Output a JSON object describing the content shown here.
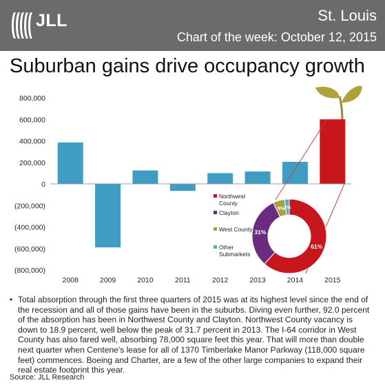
{
  "header": {
    "brand": "JLL",
    "city": "St. Louis",
    "subtitle": "Chart of the week: October 12, 2015",
    "header_color": "#6b6b6b"
  },
  "title": "Suburban gains drive occupancy growth",
  "chart_data": [
    {
      "type": "bar",
      "categories": [
        "2008",
        "2009",
        "2010",
        "2011",
        "2012",
        "2013",
        "2014",
        "2015"
      ],
      "values": [
        385000,
        -590000,
        125000,
        -65000,
        100000,
        115000,
        205000,
        600000
      ],
      "y_tick_labels": [
        "800,000",
        "600,000",
        "400,000",
        "200,000",
        "0",
        "(200,000)",
        "(400,000)",
        "(600,000)",
        "(800,000)"
      ],
      "ylim": [
        -800000,
        800000
      ],
      "grid": false,
      "bar_color": "#3f9cc2",
      "highlight_color": "#c8161d",
      "highlight_category": "2015"
    },
    {
      "type": "pie",
      "donut": true,
      "labels": [
        "Northwest County",
        "Clayton",
        "West County",
        "Other Submarkets"
      ],
      "legend_lines": [
        [
          "Northwest",
          "County"
        ],
        [
          "Clayton"
        ],
        [
          "West County"
        ],
        [
          "Other",
          "Submarkets"
        ]
      ],
      "values": [
        61,
        31,
        5,
        2
      ],
      "value_labels": [
        "61%",
        "31%",
        "5%",
        "2%"
      ],
      "colors": [
        "#c8161d",
        "#6a2c7e",
        "#a8a23c",
        "#4db0c9"
      ],
      "legend_position": "left"
    }
  ],
  "body_text": "Total absorption through the first three quarters of 2015 was at its highest level since the end of the recession and all of those gains have been in the suburbs. Diving even further, 92.0 percent of the absorption has been in Northwest County and Clayton. Northwest County vacancy is down to 18.9 percent, well below the peak of 31.7 percent in 2013. The I-64 corridor in West County has also fared well, absorbing 78,000 square feet this year. That will more than double next quarter when Centene's lease for all of 1370 Timberlake Manor Parkway (118,000 square feet) commences. Boeing and Charter, are a few of the other large companies to expand their real estate footprint this year.",
  "bullet": "•",
  "source": "Source: JLL Research"
}
